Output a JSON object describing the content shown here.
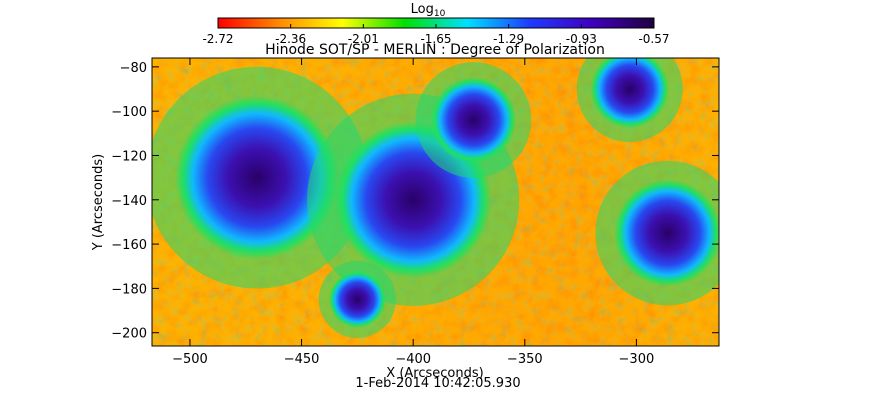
{
  "colorbar": {
    "title": "Log",
    "title_subscript": "10",
    "ticks": [
      "-2.72",
      "-2.36",
      "-2.01",
      "-1.65",
      "-1.29",
      "-0.93",
      "-0.57"
    ],
    "stops": [
      "#ff0000",
      "#ff8c00",
      "#ffff00",
      "#00e000",
      "#00e0ff",
      "#1e3cff",
      "#4000c0",
      "#200040"
    ]
  },
  "chart_data": {
    "type": "heatmap",
    "title": "Hinode SOT/SP - MERLIN : Degree of Polarization",
    "xlabel": "X (Arcseconds)",
    "ylabel": "Y (Arcseconds)",
    "xlim": [
      -517,
      -263
    ],
    "ylim": [
      -206,
      -76
    ],
    "x_ticks": [
      -500,
      -450,
      -400,
      -350,
      -300
    ],
    "y_ticks": [
      -80,
      -100,
      -120,
      -140,
      -160,
      -180,
      -200
    ],
    "value_scale": "log10",
    "value_range": [
      -2.72,
      -0.57
    ],
    "timestamp": "1-Feb-2014 10:42:05.930",
    "features": [
      {
        "x": -470,
        "y": -130,
        "radius": 23
      },
      {
        "x": -400,
        "y": -140,
        "radius": 22
      },
      {
        "x": -373,
        "y": -104,
        "radius": 12
      },
      {
        "x": -425,
        "y": -185,
        "radius": 8
      },
      {
        "x": -286,
        "y": -155,
        "radius": 15
      },
      {
        "x": -303,
        "y": -90,
        "radius": 11
      }
    ]
  }
}
